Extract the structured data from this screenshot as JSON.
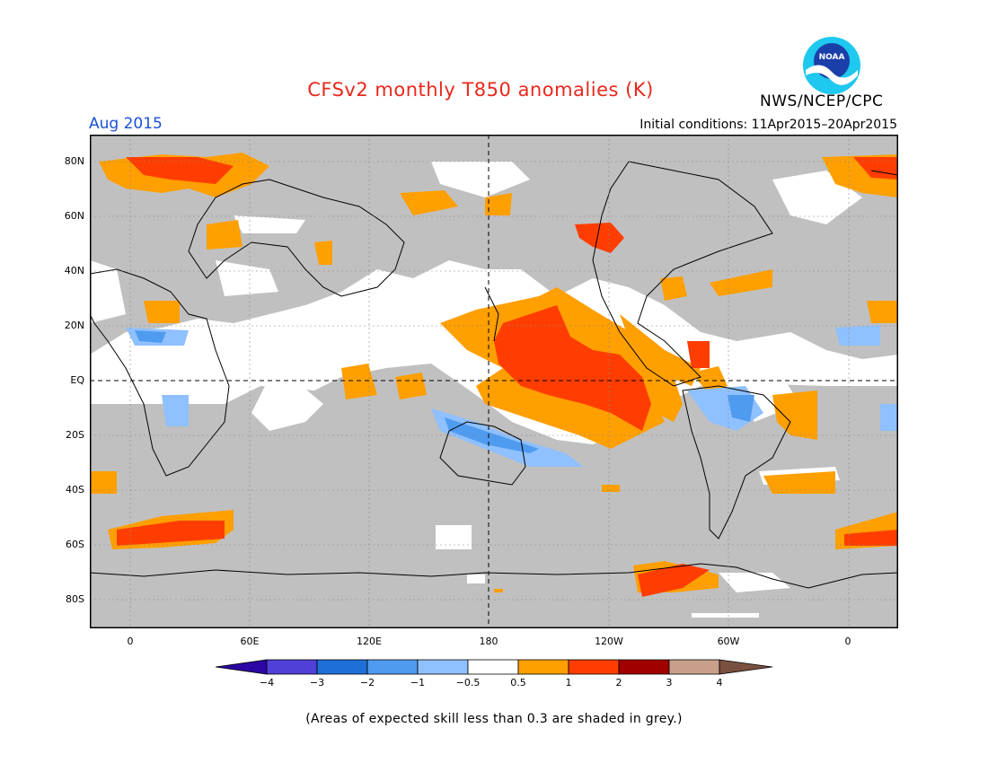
{
  "header": {
    "title": "CFSv2 monthly T850 anomalies (K)",
    "agency": "NWS/NCEP/CPC",
    "logo_text": "NOAA",
    "valid_month": "Aug 2015",
    "initial_conditions": "Initial conditions: 11Apr2015–20Apr2015"
  },
  "map": {
    "lat_labels": [
      "80N",
      "60N",
      "40N",
      "20N",
      "EQ",
      "20S",
      "40S",
      "60S",
      "80S"
    ],
    "lon_labels": [
      "0",
      "60E",
      "120E",
      "180",
      "120W",
      "60W",
      "0"
    ],
    "colors": {
      "grey_low_skill": "#c0c0c0",
      "ocean_white": "#ffffff",
      "pos_0_5_1": "#ff9f00",
      "pos_1_2": "#ff3d00",
      "neg_0_5_1": "#8fc0ff",
      "neg_1_2": "#4f9bf0",
      "coast": "#000000"
    }
  },
  "colorbar": {
    "labels": [
      "−4",
      "−3",
      "−2",
      "−1",
      "−0.5",
      "0.5",
      "1",
      "2",
      "3",
      "4"
    ],
    "colors": [
      "#2b06a3",
      "#5040d8",
      "#1f6fd8",
      "#4f9bf0",
      "#8fc0ff",
      "#ffffff",
      "#ff9f00",
      "#ff3d00",
      "#a00000",
      "#c8a08a",
      "#7a5040"
    ]
  },
  "footnote": "(Areas of expected skill less than 0.3 are shaded in grey.)"
}
